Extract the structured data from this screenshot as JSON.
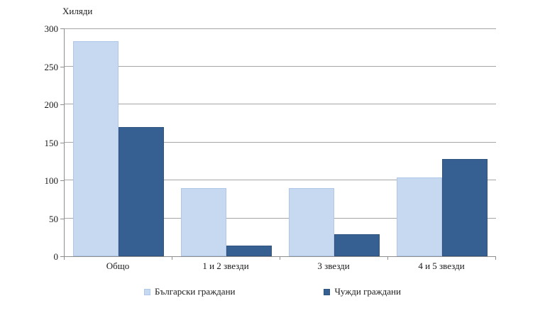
{
  "chart_data": {
    "type": "bar",
    "title": "",
    "ylabel": "Хиляди",
    "categories": [
      "Общо",
      "1 и 2 звезди",
      "3 звезди",
      "4 и 5 звезди"
    ],
    "series": [
      {
        "name": "Български граждани",
        "color": "#c6d9f1",
        "border_color": "#afc7e8",
        "values": [
          283,
          90,
          90,
          104
        ]
      },
      {
        "name": "Чужди граждани",
        "color": "#366092",
        "border_color": "#2f5480",
        "values": [
          170,
          14,
          29,
          128
        ]
      }
    ],
    "yticks": [
      0,
      50,
      100,
      150,
      200,
      250,
      300
    ],
    "ylim": [
      0,
      300
    ],
    "grid": true,
    "gridline_color": "#a6a6a6",
    "axis_color": "#8e8e8e",
    "legend_position": "bottom"
  }
}
